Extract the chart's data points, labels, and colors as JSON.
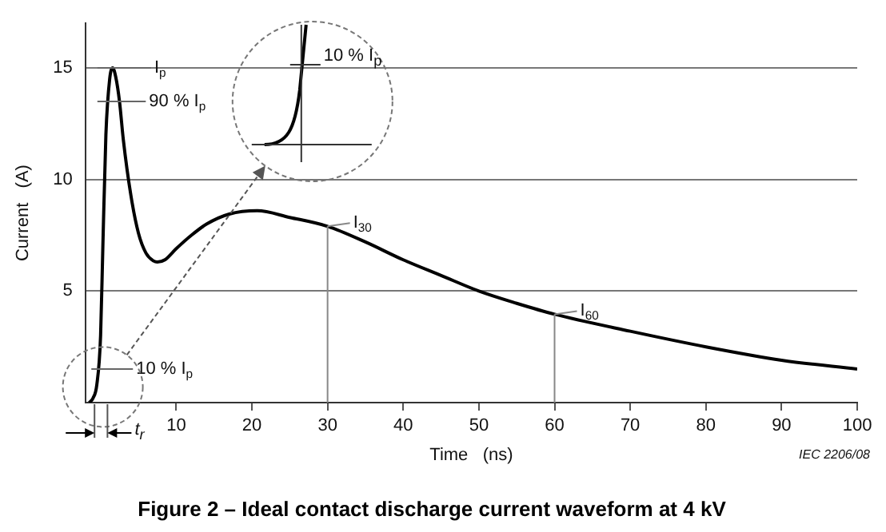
{
  "chart_data": {
    "type": "line",
    "title": "Figure 2 – Ideal contact discharge current waveform at 4 kV",
    "xlabel": "Time   (ns)",
    "ylabel": "Current   (A)",
    "x": [
      -1.5,
      -1,
      -0.5,
      0,
      0.3,
      0.7,
      1.2,
      1.6,
      2,
      2.5,
      3,
      4,
      5,
      6,
      7,
      7.5,
      8.5,
      10,
      12,
      14,
      17,
      20.7,
      25,
      30,
      35,
      40,
      45,
      50,
      55,
      60,
      70,
      80,
      90,
      100
    ],
    "series": [
      {
        "color": "#000000",
        "values": [
          0,
          0.2,
          0.8,
          3,
          7,
          12,
          14.5,
          15,
          14.6,
          13.5,
          11.8,
          9.3,
          7.6,
          6.7,
          6.35,
          6.3,
          6.4,
          6.9,
          7.5,
          8,
          8.45,
          8.6,
          8.3,
          7.9,
          7.2,
          6.4,
          5.7,
          5,
          4.45,
          3.96,
          3.2,
          2.5,
          1.9,
          1.5
        ]
      }
    ],
    "xlim": [
      -2,
      100
    ],
    "xticks": [
      10,
      20,
      30,
      40,
      50,
      60,
      70,
      80,
      90,
      100
    ],
    "ylim": [
      0,
      17
    ],
    "yticks": [
      5,
      10,
      15
    ],
    "grid": "y",
    "marker": "none",
    "line_style": "solid",
    "legend": false,
    "ref_lines": [
      {
        "axis": "x",
        "value": 30,
        "label": "I$_{30}$",
        "color": "#888888"
      },
      {
        "axis": "x",
        "value": 60,
        "label": "I$_{60}$",
        "color": "#888888"
      }
    ],
    "annotations": [
      "IEC  2206/08",
      "10 % I$_{p}$",
      "t$_{r}$",
      {
        "text": "I$_{p}$",
        "x": 1.6,
        "y": 15
      },
      {
        "text": "90 % I$_{p}$",
        "x": 0.9,
        "y": 13.5
      },
      {
        "text": "10 % I$_{p}$",
        "x": -0.8,
        "y": 1.5
      }
    ]
  }
}
